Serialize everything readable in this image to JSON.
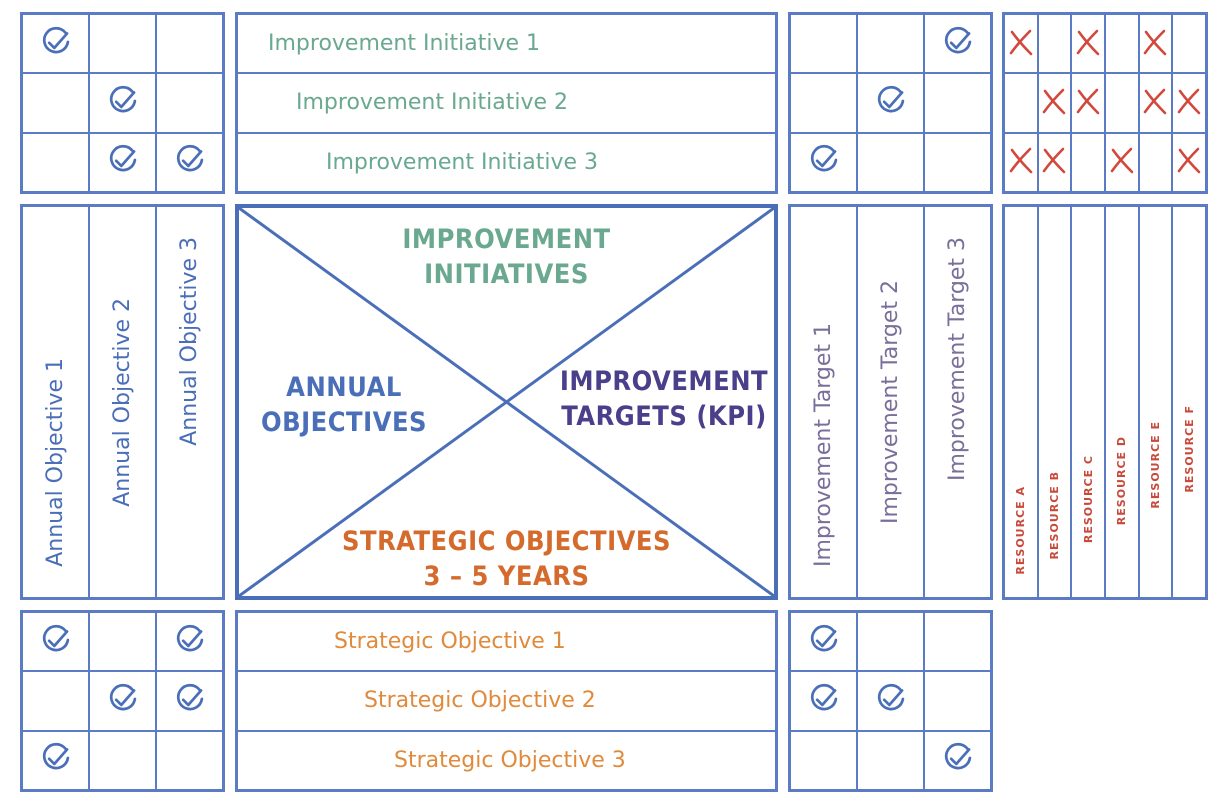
{
  "colors": {
    "border": "#5b7cc4",
    "check": "#4a6fb8",
    "x_mark": "#d2483c",
    "initiatives": "#6aa890",
    "objectives": "#4a6fb8",
    "targets": "#7a6f9a",
    "targets_center": "#4a3f8a",
    "strategic": "#e08a3c",
    "strategic_center": "#d46a2c",
    "resource": "#c84a3a"
  },
  "icons": {
    "check": "check-circle-icon",
    "x": "x-mark-icon"
  },
  "initiatives": [
    {
      "label": "Improvement Initiative 1",
      "objective_checks": [
        true,
        false,
        false
      ],
      "target_checks": [
        false,
        false,
        true
      ],
      "resource_marks": [
        true,
        false,
        true,
        false,
        true,
        false
      ]
    },
    {
      "label": "Improvement Initiative 2",
      "objective_checks": [
        false,
        true,
        false
      ],
      "target_checks": [
        false,
        true,
        false
      ],
      "resource_marks": [
        false,
        true,
        true,
        false,
        true,
        true
      ]
    },
    {
      "label": "Improvement Initiative 3",
      "objective_checks": [
        false,
        true,
        true
      ],
      "target_checks": [
        true,
        false,
        false
      ],
      "resource_marks": [
        true,
        true,
        false,
        true,
        false,
        true
      ]
    }
  ],
  "annual_objectives": [
    "Annual Objective 1",
    "Annual Objective 2",
    "Annual Objective 3"
  ],
  "improvement_targets": [
    "Improvement Target 1",
    "Improvement Target 2",
    "Improvement Target 3"
  ],
  "resources": [
    "RESOURCE A",
    "RESOURCE B",
    "RESOURCE C",
    "RESOURCE D",
    "RESOURCE E",
    "RESOURCE F"
  ],
  "center": {
    "top_line1": "IMPROVEMENT",
    "top_line2": "INITIATIVES",
    "left_line1": "ANNUAL",
    "left_line2": "OBJECTIVES",
    "right_line1": "IMPROVEMENT",
    "right_line2": "TARGETS (KPI)",
    "bottom_line1": "STRATEGIC OBJECTIVES",
    "bottom_line2": "3 – 5 YEARS"
  },
  "strategic": [
    {
      "label": "Strategic Objective 1",
      "objective_checks": [
        true,
        false,
        true
      ],
      "target_checks": [
        true,
        false,
        false
      ]
    },
    {
      "label": "Strategic Objective 2",
      "objective_checks": [
        false,
        true,
        true
      ],
      "target_checks": [
        true,
        true,
        false
      ]
    },
    {
      "label": "Strategic Objective 3",
      "objective_checks": [
        true,
        false,
        false
      ],
      "target_checks": [
        false,
        false,
        true
      ]
    }
  ]
}
